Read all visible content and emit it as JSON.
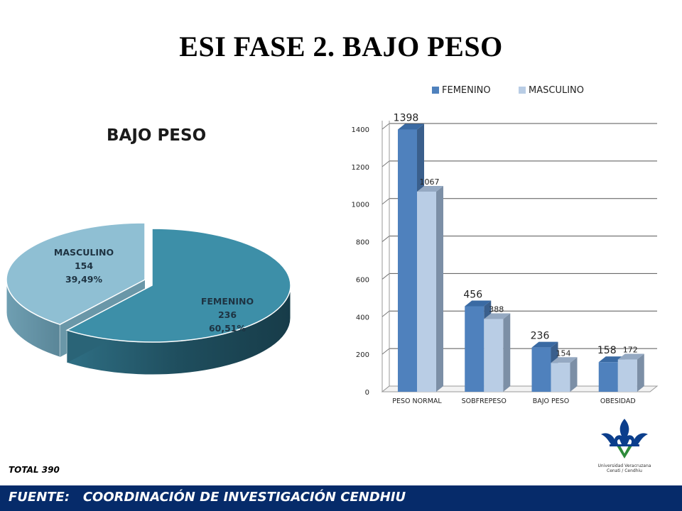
{
  "slide": {
    "title": "ESI FASE 2. BAJO PESO",
    "total_label": "TOTAL  390",
    "footer": "FUENTE:   COORDINACIÓN DE INVESTIGACIÓN CENDHIU",
    "logo_text_1": "Universidad Veracruzana",
    "logo_text_2": "Cenati / Cendhiu"
  },
  "colors": {
    "femenino_bar": "#4f81bd",
    "masculino_bar": "#b9cde5",
    "pie_femenino": "#3d8fa8",
    "pie_masculino": "#8fbfd3",
    "footer_bg": "#062b6a"
  },
  "chart_data": [
    {
      "type": "pie",
      "title": "BAJO PESO",
      "slices": [
        {
          "label": "FEMENINO",
          "value": 236,
          "percent": "60,51%"
        },
        {
          "label": "MASCULINO",
          "value": 154,
          "percent": "39,49%"
        }
      ],
      "exploded": true,
      "style": "3d"
    },
    {
      "type": "bar",
      "style": "3d",
      "categories": [
        "PESO NORMAL",
        "SOBFREPESO",
        "BAJO PESO",
        "OBESIDAD"
      ],
      "series": [
        {
          "name": "FEMENINO",
          "values": [
            1398,
            456,
            236,
            158
          ]
        },
        {
          "name": "MASCULINO",
          "values": [
            1067,
            388,
            154,
            172
          ]
        }
      ],
      "ylim": [
        0,
        1400
      ],
      "yticks": [
        0,
        200,
        400,
        600,
        800,
        1000,
        1200,
        1400
      ],
      "grid": true,
      "legend": "top"
    }
  ]
}
